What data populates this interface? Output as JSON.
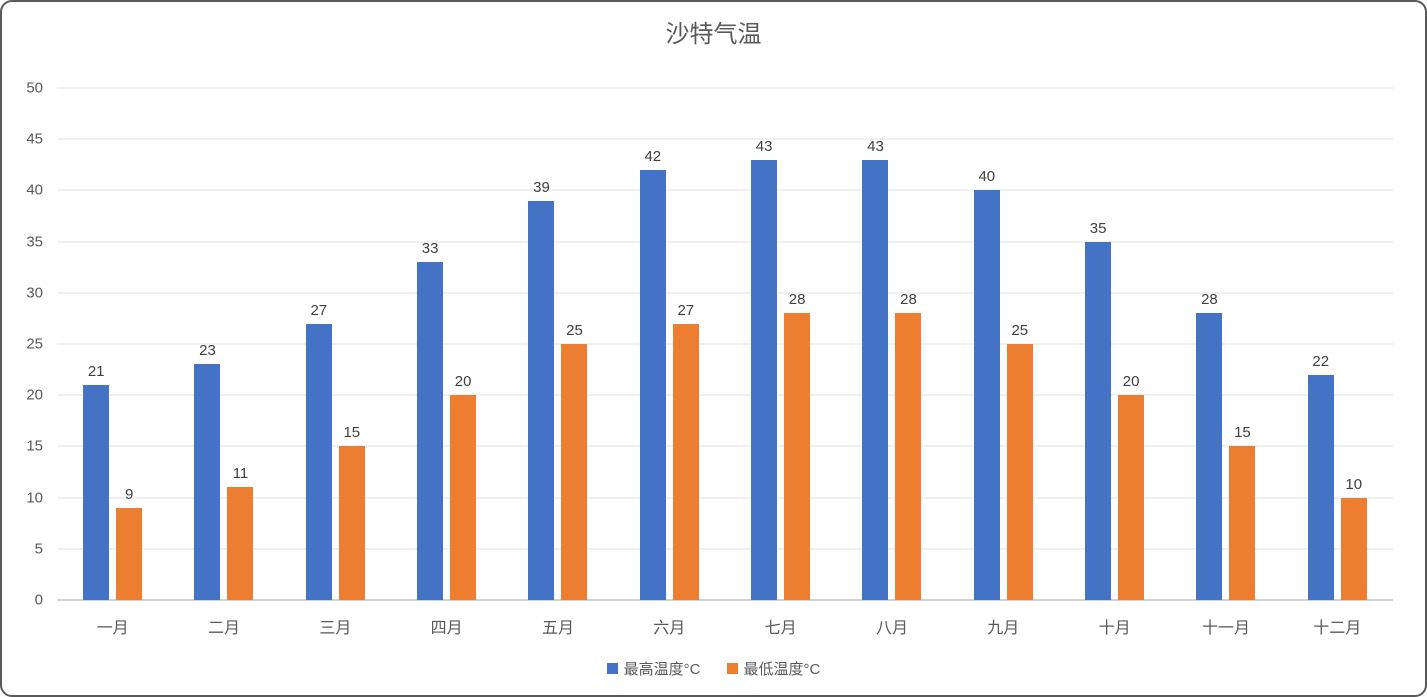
{
  "chart_data": {
    "type": "bar",
    "title": "沙特气温",
    "categories": [
      "一月",
      "二月",
      "三月",
      "四月",
      "五月",
      "六月",
      "七月",
      "八月",
      "九月",
      "十月",
      "十一月",
      "十二月"
    ],
    "series": [
      {
        "name": "最高温度°C",
        "color": "#4472C4",
        "values": [
          21,
          23,
          27,
          33,
          39,
          42,
          43,
          43,
          40,
          35,
          28,
          22
        ]
      },
      {
        "name": "最低温度°C",
        "color": "#ED7D31",
        "values": [
          9,
          11,
          15,
          20,
          25,
          27,
          28,
          28,
          25,
          20,
          15,
          10
        ]
      }
    ],
    "ylim": [
      0,
      50
    ],
    "ytick_step": 5,
    "ytick_labels": [
      "0",
      "5",
      "10",
      "15",
      "20",
      "25",
      "30",
      "35",
      "40",
      "45",
      "50"
    ],
    "grid": "horizontal",
    "legend_position": "bottom",
    "data_labels": "above-bars"
  },
  "colors": {
    "title_text": "#595959",
    "axis_text": "#595959",
    "data_label_text": "#404040",
    "gridline": "#E0E0E0",
    "baseline": "#D2D2D2",
    "card_border": "#595959",
    "background": "#FFFFFF"
  }
}
